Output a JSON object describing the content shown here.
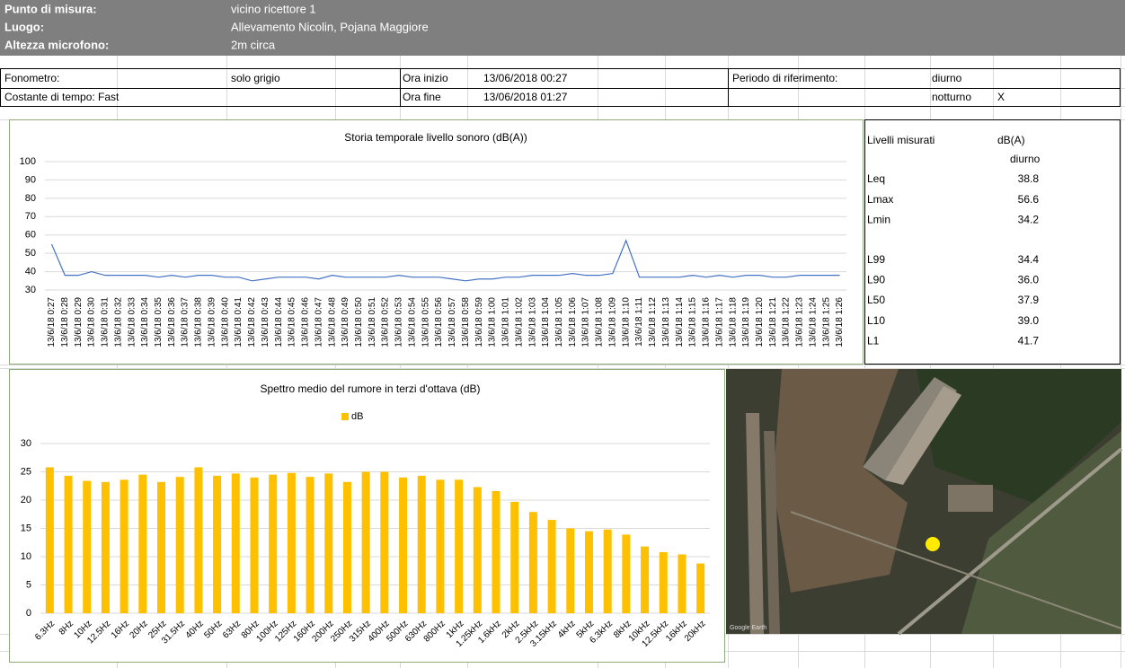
{
  "header": {
    "rows": [
      [
        "Punto di misura:",
        "vicino ricettore 1"
      ],
      [
        "Luogo:",
        "Allevamento Nicolin, Pojana Maggiore"
      ],
      [
        "Altezza microfono:",
        "2m circa"
      ]
    ]
  },
  "info": {
    "rows": [
      [
        "Fonometro:",
        "solo grigio",
        "Ora inizio",
        "13/06/2018 00:27",
        "Periodo di riferimento:",
        "diurno"
      ],
      [
        "Costante di tempo: Fast",
        "Ora fine",
        "13/06/2018 01:27",
        "notturno",
        "X"
      ]
    ]
  },
  "levels": {
    "header": [
      "Livelli misurati",
      "dB(A)"
    ],
    "period": "diurno",
    "rows": [
      [
        "Leq",
        "38.8"
      ],
      [
        "Lmax",
        "56.6"
      ],
      [
        "Lmin",
        "34.2"
      ],
      [
        "L99",
        "34.4"
      ],
      [
        "L90",
        "36.0"
      ],
      [
        "L50",
        "37.9"
      ],
      [
        "L10",
        "39.0"
      ],
      [
        "L1",
        "41.7"
      ]
    ]
  },
  "map": {
    "watermark": "Google Earth"
  },
  "chart_data": [
    {
      "type": "line",
      "title": "Storia temporale livello sonoro (dB(A))",
      "color": "#4472c4",
      "grid": true,
      "categories": [
        "13/6/18 0:27",
        "13/6/18 0:28",
        "13/6/18 0:29",
        "13/6/18 0:30",
        "13/6/18 0:31",
        "13/6/18 0:32",
        "13/6/18 0:33",
        "13/6/18 0:34",
        "13/6/18 0:35",
        "13/6/18 0:36",
        "13/6/18 0:37",
        "13/6/18 0:38",
        "13/6/18 0:39",
        "13/6/18 0:40",
        "13/6/18 0:41",
        "13/6/18 0:42",
        "13/6/18 0:43",
        "13/6/18 0:44",
        "13/6/18 0:45",
        "13/6/18 0:46",
        "13/6/18 0:47",
        "13/6/18 0:48",
        "13/6/18 0:49",
        "13/6/18 0:50",
        "13/6/18 0:51",
        "13/6/18 0:52",
        "13/6/18 0:53",
        "13/6/18 0:54",
        "13/6/18 0:55",
        "13/6/18 0:56",
        "13/6/18 0:57",
        "13/6/18 0:58",
        "13/6/18 0:59",
        "13/6/18 1:00",
        "13/6/18 1:01",
        "13/6/18 1:02",
        "13/6/18 1:03",
        "13/6/18 1:04",
        "13/6/18 1:05",
        "13/6/18 1:06",
        "13/6/18 1:07",
        "13/6/18 1:08",
        "13/6/18 1:09",
        "13/6/18 1:10",
        "13/6/18 1:11",
        "13/6/18 1:12",
        "13/6/18 1:13",
        "13/6/18 1:14",
        "13/6/18 1:15",
        "13/6/18 1:16",
        "13/6/18 1:17",
        "13/6/18 1:18",
        "13/6/18 1:19",
        "13/6/18 1:20",
        "13/6/18 1:21",
        "13/6/18 1:22",
        "13/6/18 1:23",
        "13/6/18 1:24",
        "13/6/18 1:25",
        "13/6/18 1:26"
      ],
      "values": [
        55,
        38,
        38,
        40,
        38,
        38,
        38,
        38,
        37,
        38,
        37,
        38,
        38,
        37,
        37,
        35,
        36,
        37,
        37,
        37,
        36,
        38,
        37,
        37,
        37,
        37,
        38,
        37,
        37,
        37,
        36,
        35,
        36,
        36,
        37,
        37,
        38,
        38,
        38,
        39,
        38,
        38,
        39,
        57,
        37,
        37,
        37,
        37,
        38,
        37,
        38,
        37,
        38,
        38,
        37,
        37,
        38,
        38,
        38,
        38
      ],
      "ylim": [
        30,
        100
      ],
      "yticks": [
        30,
        40,
        50,
        60,
        70,
        80,
        90,
        100
      ]
    },
    {
      "type": "bar",
      "title": "Spettro medio del rumore in terzi d'ottava (dB)",
      "grid": true,
      "categories": [
        "6.3Hz",
        "8Hz",
        "10Hz",
        "12.5Hz",
        "16Hz",
        "20Hz",
        "25Hz",
        "31.5Hz",
        "40Hz",
        "50Hz",
        "63Hz",
        "80Hz",
        "100Hz",
        "125Hz",
        "160Hz",
        "200Hz",
        "250Hz",
        "315Hz",
        "400Hz",
        "500Hz",
        "630Hz",
        "800Hz",
        "1kHz",
        "1.25kHz",
        "1.6kHz",
        "2kHz",
        "2.5kHz",
        "3.15kHz",
        "4kHz",
        "5kHz",
        "6.3kHz",
        "8kHz",
        "10kHz",
        "12.5kHz",
        "16kHz",
        "20kHz"
      ],
      "series": [
        {
          "name": "dB",
          "color": "#ffc000",
          "values": [
            25.8,
            24.3,
            23.4,
            23.2,
            23.6,
            24.5,
            23.2,
            24.1,
            25.8,
            24.3,
            24.7,
            24.0,
            24.5,
            24.8,
            24.1,
            24.7,
            23.2,
            25.0,
            25.0,
            24.0,
            24.3,
            23.6,
            23.6,
            22.3,
            21.6,
            19.7,
            17.9,
            16.5,
            15.0,
            14.5,
            14.8,
            13.9,
            11.8,
            10.8,
            10.4,
            8.8
          ]
        }
      ],
      "ylim": [
        0,
        30
      ],
      "yticks": [
        0,
        5,
        10,
        15,
        20,
        25,
        30
      ]
    }
  ]
}
